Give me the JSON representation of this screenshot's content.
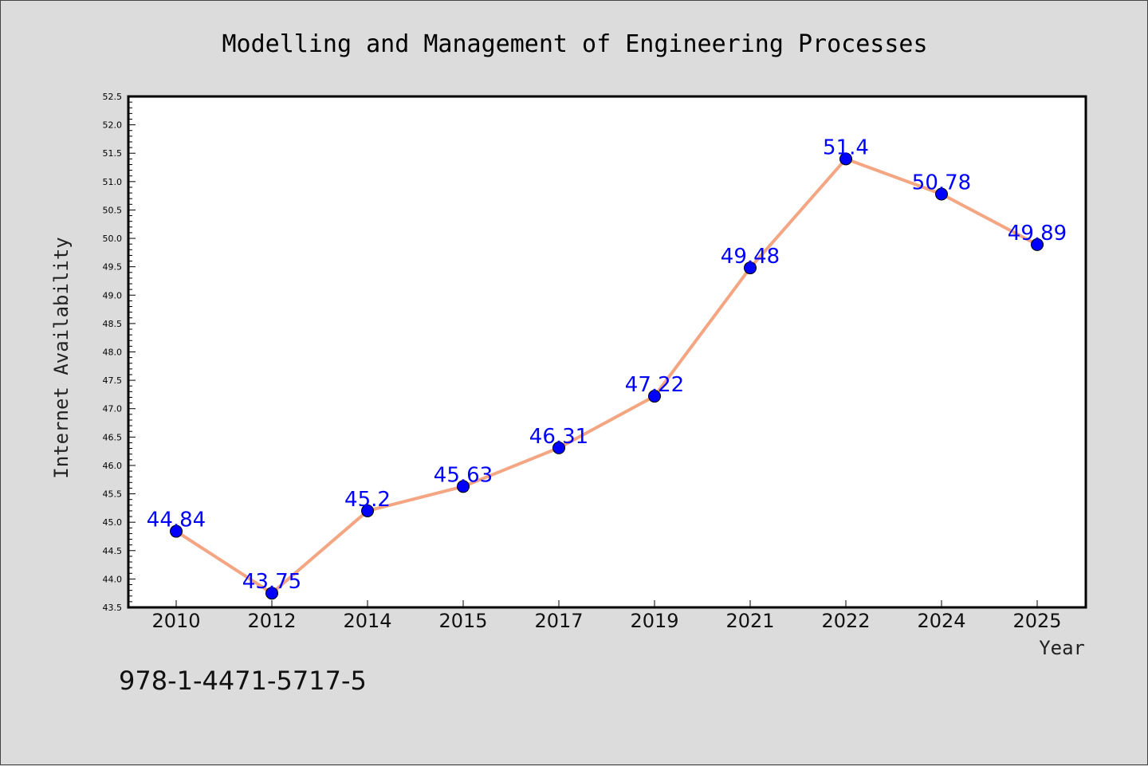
{
  "chart_data": {
    "type": "line",
    "title": "Modelling and Management of Engineering Processes",
    "xlabel": "Year",
    "ylabel": "Internet Availability",
    "categories": [
      "2010",
      "2012",
      "2014",
      "2015",
      "2017",
      "2019",
      "2021",
      "2022",
      "2024",
      "2025"
    ],
    "series": [
      {
        "values": [
          44.84,
          43.75,
          45.2,
          45.63,
          46.31,
          47.22,
          49.48,
          51.4,
          50.78,
          49.89
        ],
        "labels": [
          "44.84",
          "43.75",
          "45.2",
          "45.63",
          "46.31",
          "47.22",
          "49.48",
          "51.4",
          "50.78",
          "49.89"
        ],
        "line_color": "#f4a582",
        "marker_color": "#0000ff"
      }
    ],
    "ylim": [
      43.5,
      52.5
    ],
    "yticks": [
      "43.5",
      "44.0",
      "44.5",
      "45.0",
      "45.5",
      "46.0",
      "46.5",
      "47.0",
      "47.5",
      "48.0",
      "48.5",
      "49.0",
      "49.5",
      "50.0",
      "50.5",
      "51.0",
      "51.5",
      "52.0",
      "52.5"
    ],
    "grid": false,
    "legend": "none",
    "background": "#dcdcdc",
    "plot_background": "#ffffff",
    "label_color": "#0000ff"
  },
  "annotation": {
    "text": "978-1-4471-5717-5"
  }
}
